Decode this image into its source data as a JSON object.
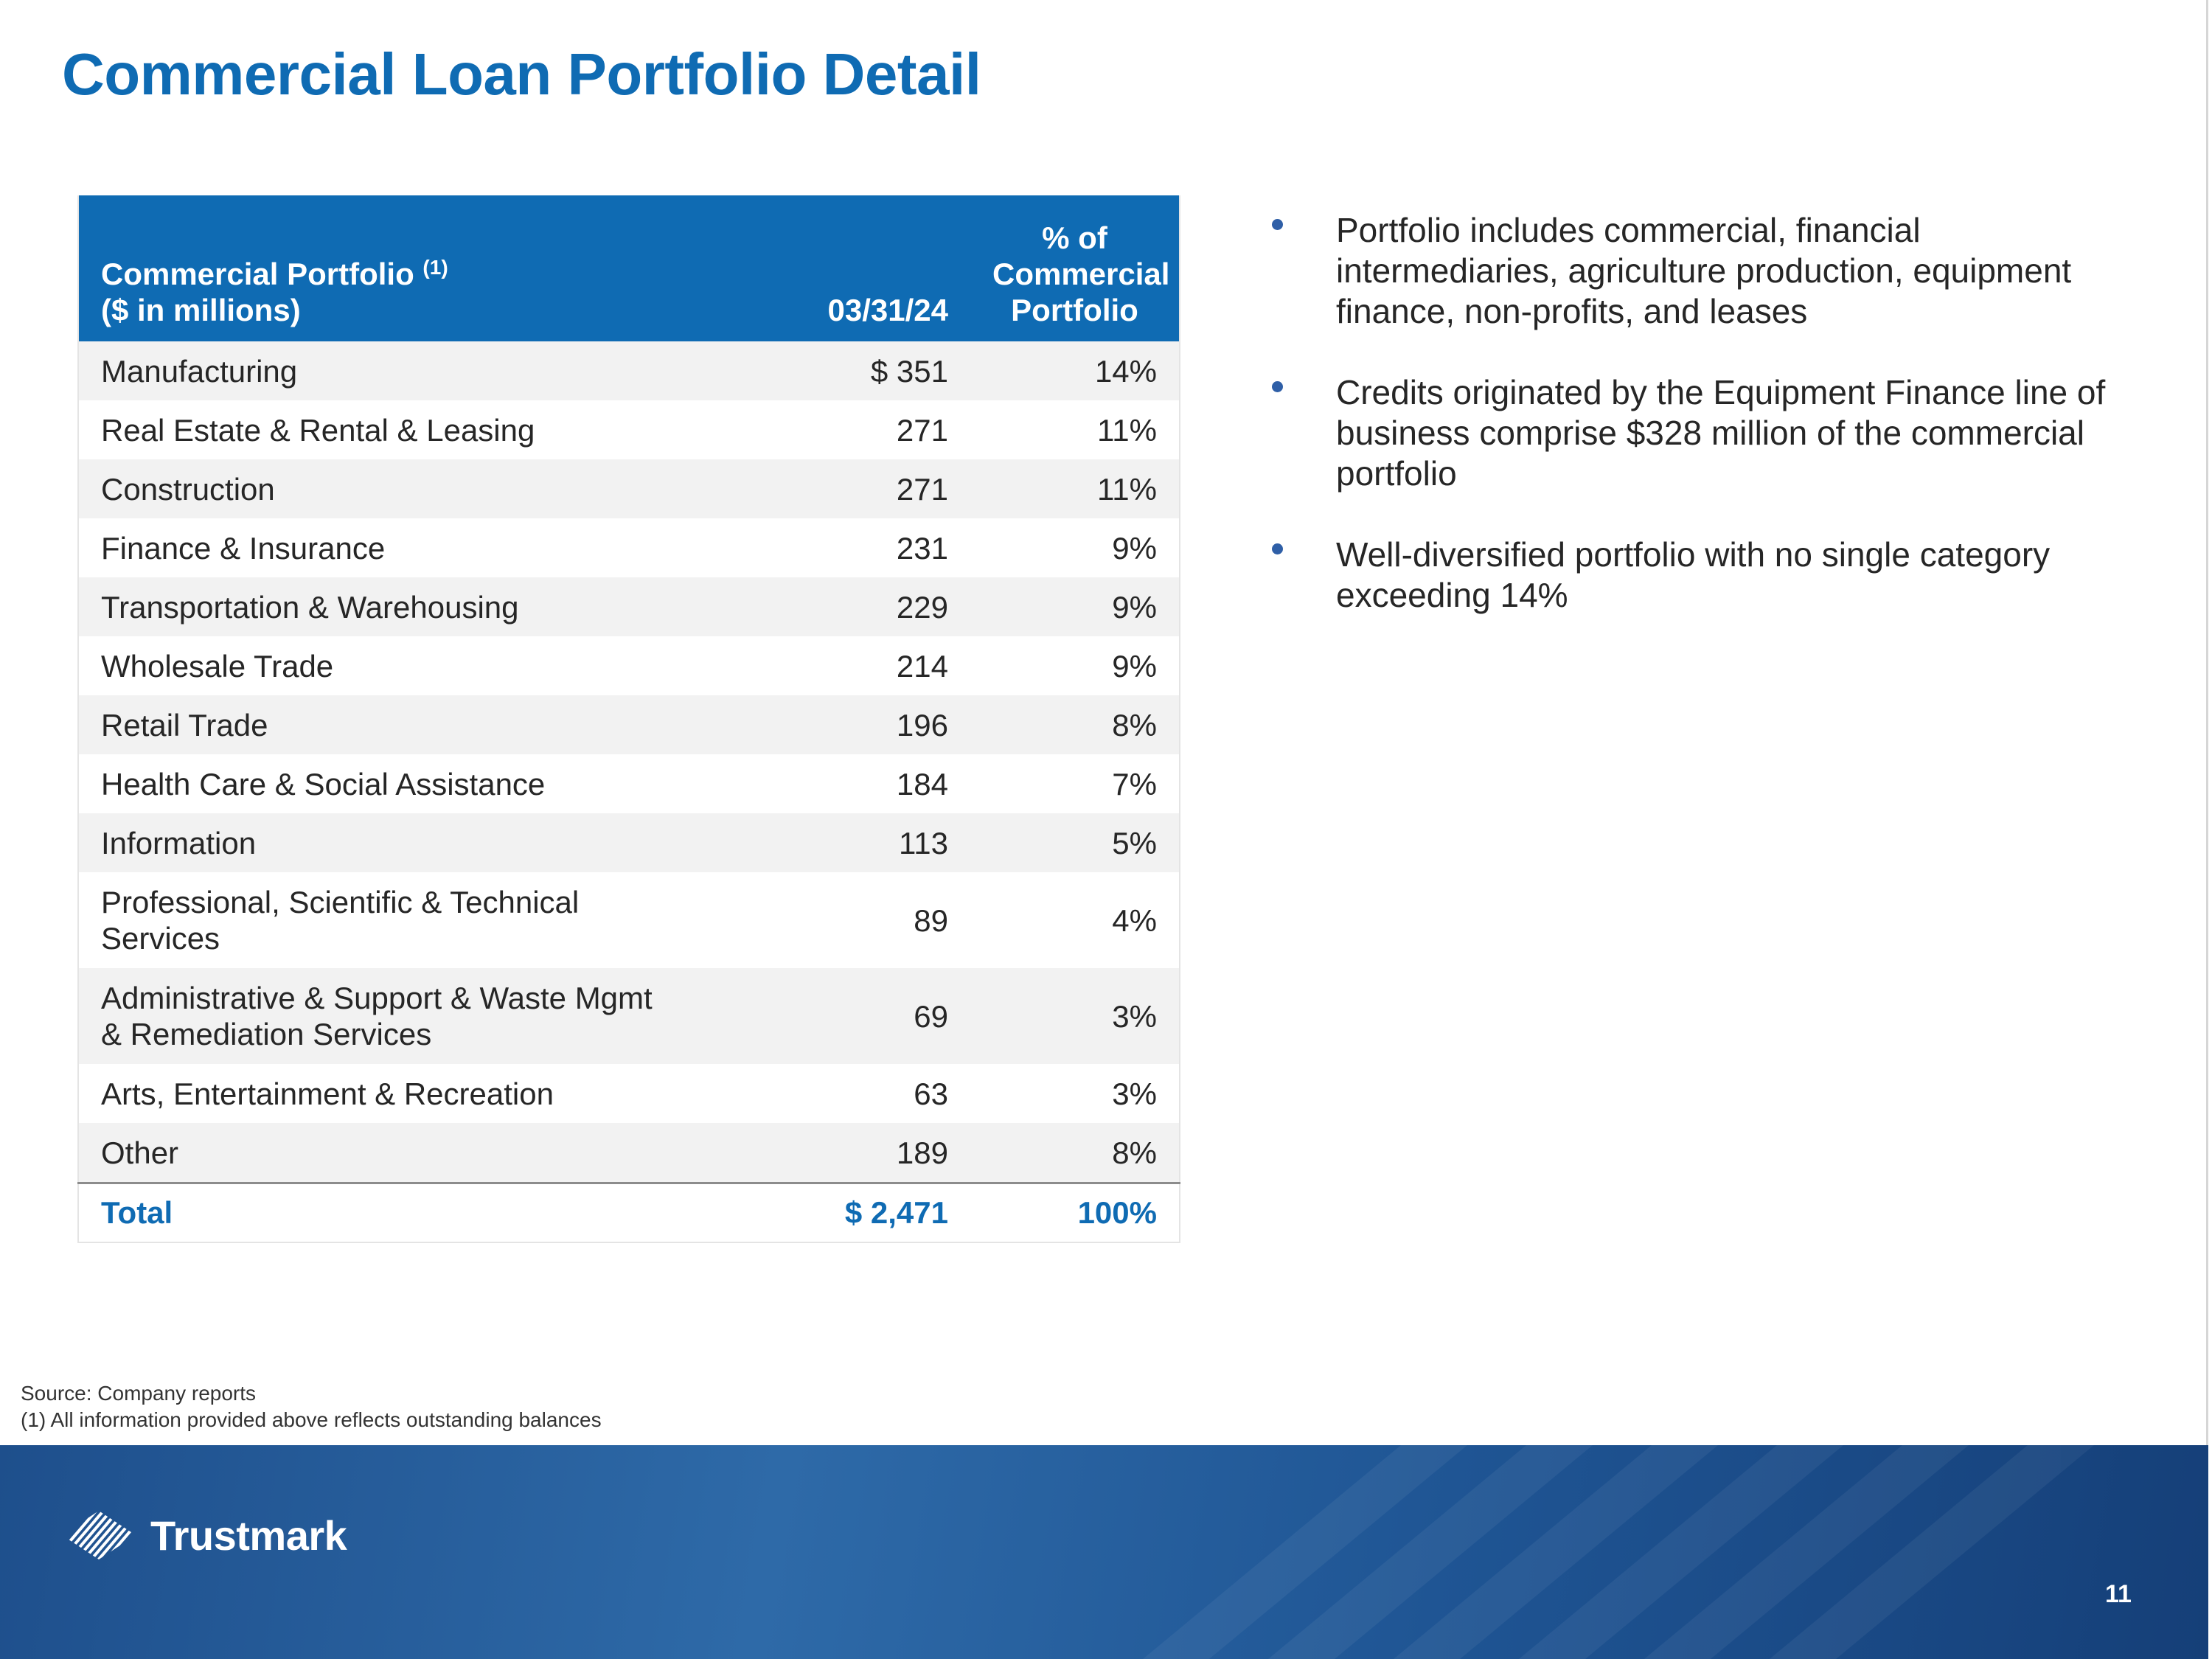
{
  "title": "Commercial Loan Portfolio Detail",
  "table": {
    "header": {
      "label_line1": "Commercial Portfolio",
      "label_superscript": "(1)",
      "label_line2": "($ in millions)",
      "date": "03/31/24",
      "pct_line1": "% of",
      "pct_line2": "Commercial",
      "pct_line3": "Portfolio"
    },
    "rows": [
      {
        "category": "Manufacturing",
        "amount": "$ 351",
        "pct": "14%"
      },
      {
        "category": "Real Estate & Rental & Leasing",
        "amount": "271",
        "pct": "11%"
      },
      {
        "category": "Construction",
        "amount": "271",
        "pct": "11%"
      },
      {
        "category": "Finance & Insurance",
        "amount": "231",
        "pct": "9%"
      },
      {
        "category": "Transportation & Warehousing",
        "amount": "229",
        "pct": "9%"
      },
      {
        "category": "Wholesale Trade",
        "amount": "214",
        "pct": "9%"
      },
      {
        "category": "Retail Trade",
        "amount": "196",
        "pct": "8%"
      },
      {
        "category": "Health Care & Social Assistance",
        "amount": "184",
        "pct": "7%"
      },
      {
        "category": "Information",
        "amount": "113",
        "pct": "5%"
      },
      {
        "category_line1": "Professional, Scientific & Technical",
        "category_line2": "Services",
        "amount": "89",
        "pct": "4%"
      },
      {
        "category_line1": "Administrative & Support & Waste Mgmt",
        "category_line2": "& Remediation Services",
        "amount": "69",
        "pct": "3%"
      },
      {
        "category": "Arts, Entertainment & Recreation",
        "amount": "63",
        "pct": "3%"
      },
      {
        "category": "Other",
        "amount": "189",
        "pct": "8%"
      }
    ],
    "total": {
      "label": "Total",
      "amount": "$ 2,471",
      "pct": "100%"
    }
  },
  "bullets": [
    "Portfolio includes commercial, financial intermediaries, agriculture production, equipment finance, non-profits, and leases",
    "Credits originated by the Equipment Finance line of business comprise $328 million of the commercial portfolio",
    "Well-diversified portfolio with no single category exceeding 14%"
  ],
  "footnotes": {
    "source": "Source: Company reports",
    "note1": "(1) All information provided above reflects outstanding balances"
  },
  "footer": {
    "logo_text": "Trustmark",
    "page_number": "11"
  },
  "colors": {
    "brand_blue": "#0f6bb3",
    "footer_blue": "#1e4f8c",
    "row_shade": "#f2f2f2"
  },
  "icons": {
    "logo_mark": "trustmark-striped-emblem-icon",
    "bullet": "bullet-dot-icon"
  }
}
